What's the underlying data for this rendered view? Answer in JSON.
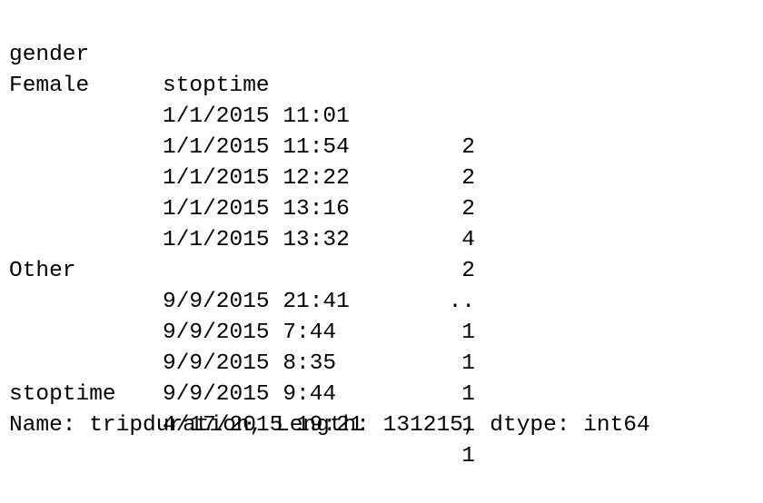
{
  "header": {
    "col1": "gender",
    "col2": "stoptime"
  },
  "rows": [
    {
      "gender": "Female",
      "stoptime": "1/1/2015 11:01",
      "value": "2"
    },
    {
      "gender": "",
      "stoptime": "1/1/2015 11:54",
      "value": "2"
    },
    {
      "gender": "",
      "stoptime": "1/1/2015 12:22",
      "value": "2"
    },
    {
      "gender": "",
      "stoptime": "1/1/2015 13:16",
      "value": "4"
    },
    {
      "gender": "",
      "stoptime": "1/1/2015 13:32",
      "value": "2"
    },
    {
      "gender": "",
      "stoptime": "",
      "value": ".."
    },
    {
      "gender": "Other",
      "stoptime": "9/9/2015 21:41",
      "value": "1"
    },
    {
      "gender": "",
      "stoptime": "9/9/2015 7:44",
      "value": "1"
    },
    {
      "gender": "",
      "stoptime": "9/9/2015 8:35",
      "value": "1"
    },
    {
      "gender": "",
      "stoptime": "9/9/2015 9:44",
      "value": "1"
    },
    {
      "gender": "stoptime",
      "stoptime": "4/17/2015 19:21",
      "value": "1"
    }
  ],
  "footer": "Name: tripduration, Length: 131215, dtype: int64"
}
